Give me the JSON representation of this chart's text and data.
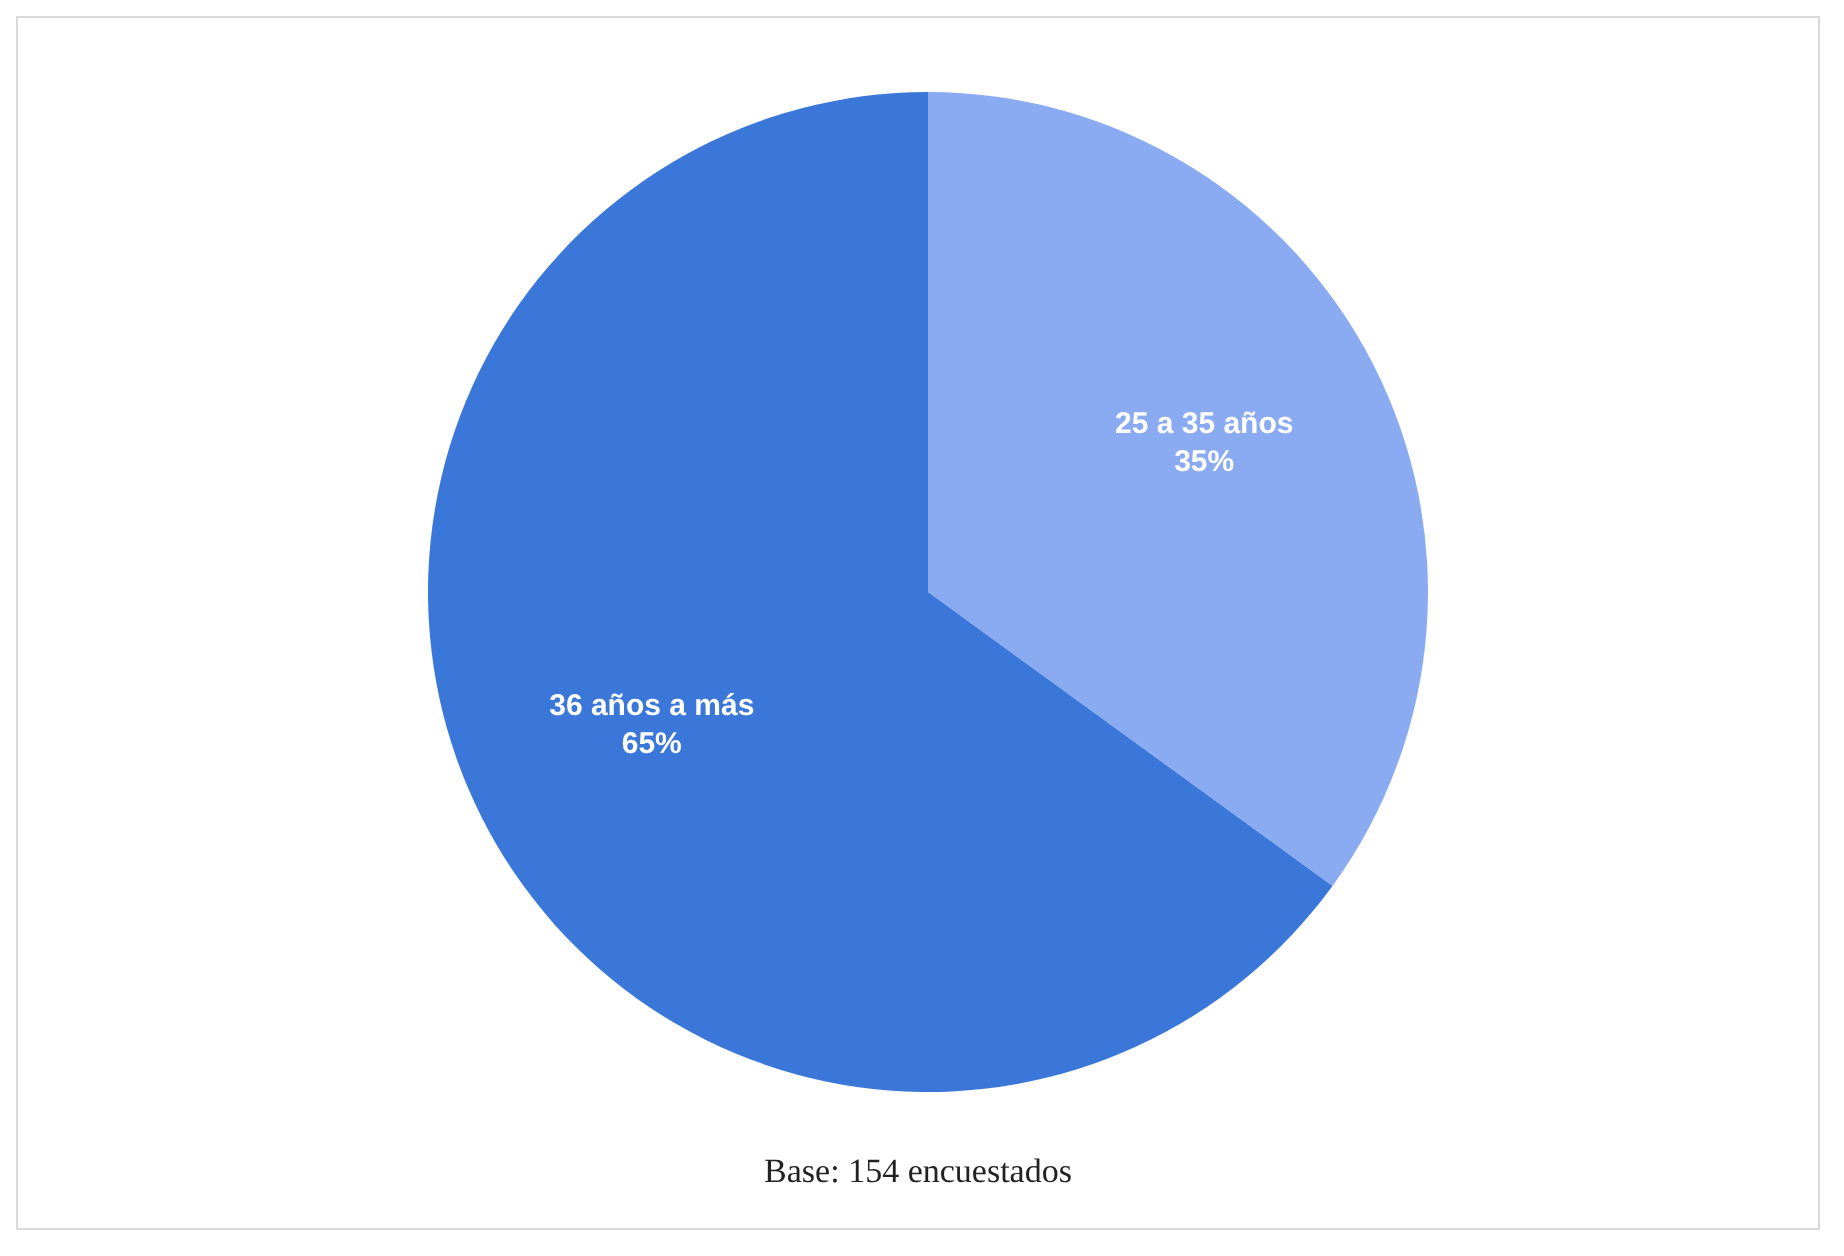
{
  "chart_data": {
    "type": "pie",
    "categories": [
      "25 a 35 años",
      "36 años a más"
    ],
    "values": [
      35,
      65
    ],
    "value_labels": [
      "35%",
      "65%"
    ],
    "colors": [
      "#8aaaf2",
      "#3a77d9"
    ],
    "annotations": [
      "Base: 154 encuestados"
    ],
    "legend": false
  }
}
